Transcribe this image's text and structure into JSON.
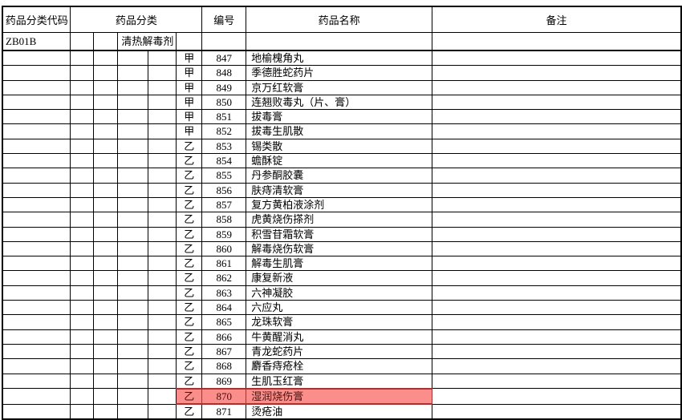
{
  "table": {
    "headers": {
      "code": "药品分类代码",
      "category": "药品分类",
      "number": "编号",
      "name": "药品名称",
      "remark": "备注"
    },
    "category_row": {
      "code": "ZB01B",
      "category": "清热解毒剂"
    },
    "rows": [
      {
        "tier": "甲",
        "no": "847",
        "name": "地榆槐角丸",
        "remark": "",
        "highlight": false
      },
      {
        "tier": "甲",
        "no": "848",
        "name": "季德胜蛇药片",
        "remark": "",
        "highlight": false
      },
      {
        "tier": "甲",
        "no": "849",
        "name": "京万红软膏",
        "remark": "",
        "highlight": false
      },
      {
        "tier": "甲",
        "no": "850",
        "name": "连翘败毒丸（片、膏）",
        "remark": "",
        "highlight": false
      },
      {
        "tier": "甲",
        "no": "851",
        "name": "拔毒膏",
        "remark": "",
        "highlight": false
      },
      {
        "tier": "甲",
        "no": "852",
        "name": "拔毒生肌散",
        "remark": "",
        "highlight": false
      },
      {
        "tier": "乙",
        "no": "853",
        "name": "锡类散",
        "remark": "",
        "highlight": false
      },
      {
        "tier": "乙",
        "no": "854",
        "name": "蟾酥锭",
        "remark": "",
        "highlight": false
      },
      {
        "tier": "乙",
        "no": "855",
        "name": "丹参酮胶囊",
        "remark": "",
        "highlight": false
      },
      {
        "tier": "乙",
        "no": "856",
        "name": "肤痔清软膏",
        "remark": "",
        "highlight": false
      },
      {
        "tier": "乙",
        "no": "857",
        "name": "复方黄柏液涂剂",
        "remark": "",
        "highlight": false
      },
      {
        "tier": "乙",
        "no": "858",
        "name": "虎黄烧伤搽剂",
        "remark": "",
        "highlight": false
      },
      {
        "tier": "乙",
        "no": "859",
        "name": "积雪苷霜软膏",
        "remark": "",
        "highlight": false
      },
      {
        "tier": "乙",
        "no": "860",
        "name": "解毒烧伤软膏",
        "remark": "",
        "highlight": false
      },
      {
        "tier": "乙",
        "no": "861",
        "name": "解毒生肌膏",
        "remark": "",
        "highlight": false
      },
      {
        "tier": "乙",
        "no": "862",
        "name": "康复新液",
        "remark": "",
        "highlight": false
      },
      {
        "tier": "乙",
        "no": "863",
        "name": "六神凝胶",
        "remark": "",
        "highlight": false
      },
      {
        "tier": "乙",
        "no": "864",
        "name": "六应丸",
        "remark": "",
        "highlight": false
      },
      {
        "tier": "乙",
        "no": "865",
        "name": "龙珠软膏",
        "remark": "",
        "highlight": false
      },
      {
        "tier": "乙",
        "no": "866",
        "name": "牛黄醒消丸",
        "remark": "",
        "highlight": false
      },
      {
        "tier": "乙",
        "no": "867",
        "name": "青龙蛇药片",
        "remark": "",
        "highlight": false
      },
      {
        "tier": "乙",
        "no": "868",
        "name": "麝香痔疮栓",
        "remark": "",
        "highlight": false
      },
      {
        "tier": "乙",
        "no": "869",
        "name": "生肌玉红膏",
        "remark": "",
        "highlight": false
      },
      {
        "tier": "乙",
        "no": "870",
        "name": "湿润烧伤膏",
        "remark": "",
        "highlight": true
      },
      {
        "tier": "乙",
        "no": "871",
        "name": "烫疮油",
        "remark": "",
        "highlight": false
      }
    ]
  },
  "colors": {
    "highlight_bg": "#fb8d8a",
    "highlight_border": "#a53331",
    "highlight_text": "#47100e",
    "border": "#000000",
    "text": "#000000",
    "page_bg": "#ffffff"
  }
}
